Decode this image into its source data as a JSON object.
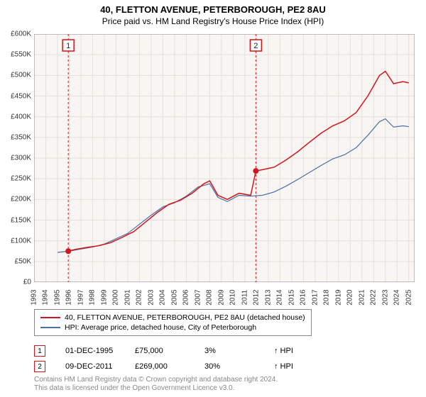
{
  "title": "40, FLETTON AVENUE, PETERBOROUGH, PE2 8AU",
  "subtitle": "Price paid vs. HM Land Registry's House Price Index (HPI)",
  "chart": {
    "type": "line",
    "background_color": "#f8f5f2",
    "grid_color": "#e5e0db",
    "axis_color": "#888888",
    "ylim": [
      0,
      600000
    ],
    "ytick_step": 50000,
    "ytick_labels": [
      "£0",
      "£50K",
      "£100K",
      "£150K",
      "£200K",
      "£250K",
      "£300K",
      "£350K",
      "£400K",
      "£450K",
      "£500K",
      "£550K",
      "£600K"
    ],
    "xlim": [
      1993,
      2025.5
    ],
    "xtick_years": [
      1993,
      1994,
      1995,
      1996,
      1997,
      1998,
      1999,
      2000,
      2001,
      2002,
      2003,
      2004,
      2005,
      2006,
      2007,
      2008,
      2009,
      2010,
      2011,
      2012,
      2013,
      2014,
      2015,
      2016,
      2017,
      2018,
      2019,
      2020,
      2021,
      2022,
      2023,
      2024,
      2025
    ],
    "series": [
      {
        "name": "40, FLETTON AVENUE, PETERBOROUGH, PE2 8AU (detached house)",
        "color": "#d4151b",
        "line_width": 1.5,
        "data": [
          [
            1995.92,
            75000
          ],
          [
            1996.5,
            79000
          ],
          [
            1997.5,
            84000
          ],
          [
            1998.5,
            88000
          ],
          [
            1999.5,
            95000
          ],
          [
            2000.5,
            108000
          ],
          [
            2001.5,
            122000
          ],
          [
            2002.5,
            145000
          ],
          [
            2003.5,
            168000
          ],
          [
            2004.5,
            188000
          ],
          [
            2005.5,
            198000
          ],
          [
            2006.5,
            215000
          ],
          [
            2007.5,
            238000
          ],
          [
            2008.0,
            245000
          ],
          [
            2008.7,
            210000
          ],
          [
            2009.5,
            200000
          ],
          [
            2010.5,
            215000
          ],
          [
            2011.5,
            210000
          ],
          [
            2011.94,
            269000
          ],
          [
            2012.5,
            272000
          ],
          [
            2013.5,
            278000
          ],
          [
            2014.5,
            295000
          ],
          [
            2015.5,
            315000
          ],
          [
            2016.5,
            338000
          ],
          [
            2017.5,
            360000
          ],
          [
            2018.5,
            378000
          ],
          [
            2019.5,
            390000
          ],
          [
            2020.5,
            410000
          ],
          [
            2021.5,
            450000
          ],
          [
            2022.5,
            500000
          ],
          [
            2023.0,
            510000
          ],
          [
            2023.7,
            480000
          ],
          [
            2024.5,
            485000
          ],
          [
            2025.0,
            482000
          ]
        ]
      },
      {
        "name": "HPI: Average price, detached house, City of Peterborough",
        "color": "#4a6fb0",
        "line_width": 1.2,
        "data": [
          [
            1995.0,
            72000
          ],
          [
            1996.0,
            75000
          ],
          [
            1997.0,
            80000
          ],
          [
            1998.0,
            85000
          ],
          [
            1999.0,
            92000
          ],
          [
            2000.0,
            105000
          ],
          [
            2001.0,
            118000
          ],
          [
            2002.0,
            140000
          ],
          [
            2003.0,
            162000
          ],
          [
            2004.0,
            182000
          ],
          [
            2005.0,
            192000
          ],
          [
            2006.0,
            208000
          ],
          [
            2007.0,
            230000
          ],
          [
            2008.0,
            238000
          ],
          [
            2008.7,
            205000
          ],
          [
            2009.5,
            195000
          ],
          [
            2010.5,
            210000
          ],
          [
            2011.5,
            208000
          ],
          [
            2012.5,
            210000
          ],
          [
            2013.5,
            218000
          ],
          [
            2014.5,
            232000
          ],
          [
            2015.5,
            248000
          ],
          [
            2016.5,
            265000
          ],
          [
            2017.5,
            282000
          ],
          [
            2018.5,
            298000
          ],
          [
            2019.5,
            308000
          ],
          [
            2020.5,
            325000
          ],
          [
            2021.5,
            355000
          ],
          [
            2022.5,
            388000
          ],
          [
            2023.0,
            395000
          ],
          [
            2023.7,
            375000
          ],
          [
            2024.5,
            378000
          ],
          [
            2025.0,
            376000
          ]
        ]
      }
    ],
    "markers": [
      {
        "label": "1",
        "x": 1995.92,
        "y": 75000,
        "color": "#d4151b",
        "dash_line": true
      },
      {
        "label": "2",
        "x": 2011.94,
        "y": 269000,
        "color": "#d4151b",
        "dash_line": true
      }
    ]
  },
  "legend": {
    "items": [
      {
        "color": "#d4151b",
        "label": "40, FLETTON AVENUE, PETERBOROUGH, PE2 8AU (detached house)"
      },
      {
        "color": "#4a6fb0",
        "label": "HPI: Average price, detached house, City of Peterborough"
      }
    ]
  },
  "marker_table": [
    {
      "num": "1",
      "color": "#d4151b",
      "date": "01-DEC-1995",
      "price": "£75,000",
      "pct": "3%",
      "suffix": "↑ HPI"
    },
    {
      "num": "2",
      "color": "#d4151b",
      "date": "09-DEC-2011",
      "price": "£269,000",
      "pct": "30%",
      "suffix": "↑ HPI"
    }
  ],
  "footer": {
    "line1": "Contains HM Land Registry data © Crown copyright and database right 2024.",
    "line2": "This data is licensed under the Open Government Licence v3.0."
  }
}
